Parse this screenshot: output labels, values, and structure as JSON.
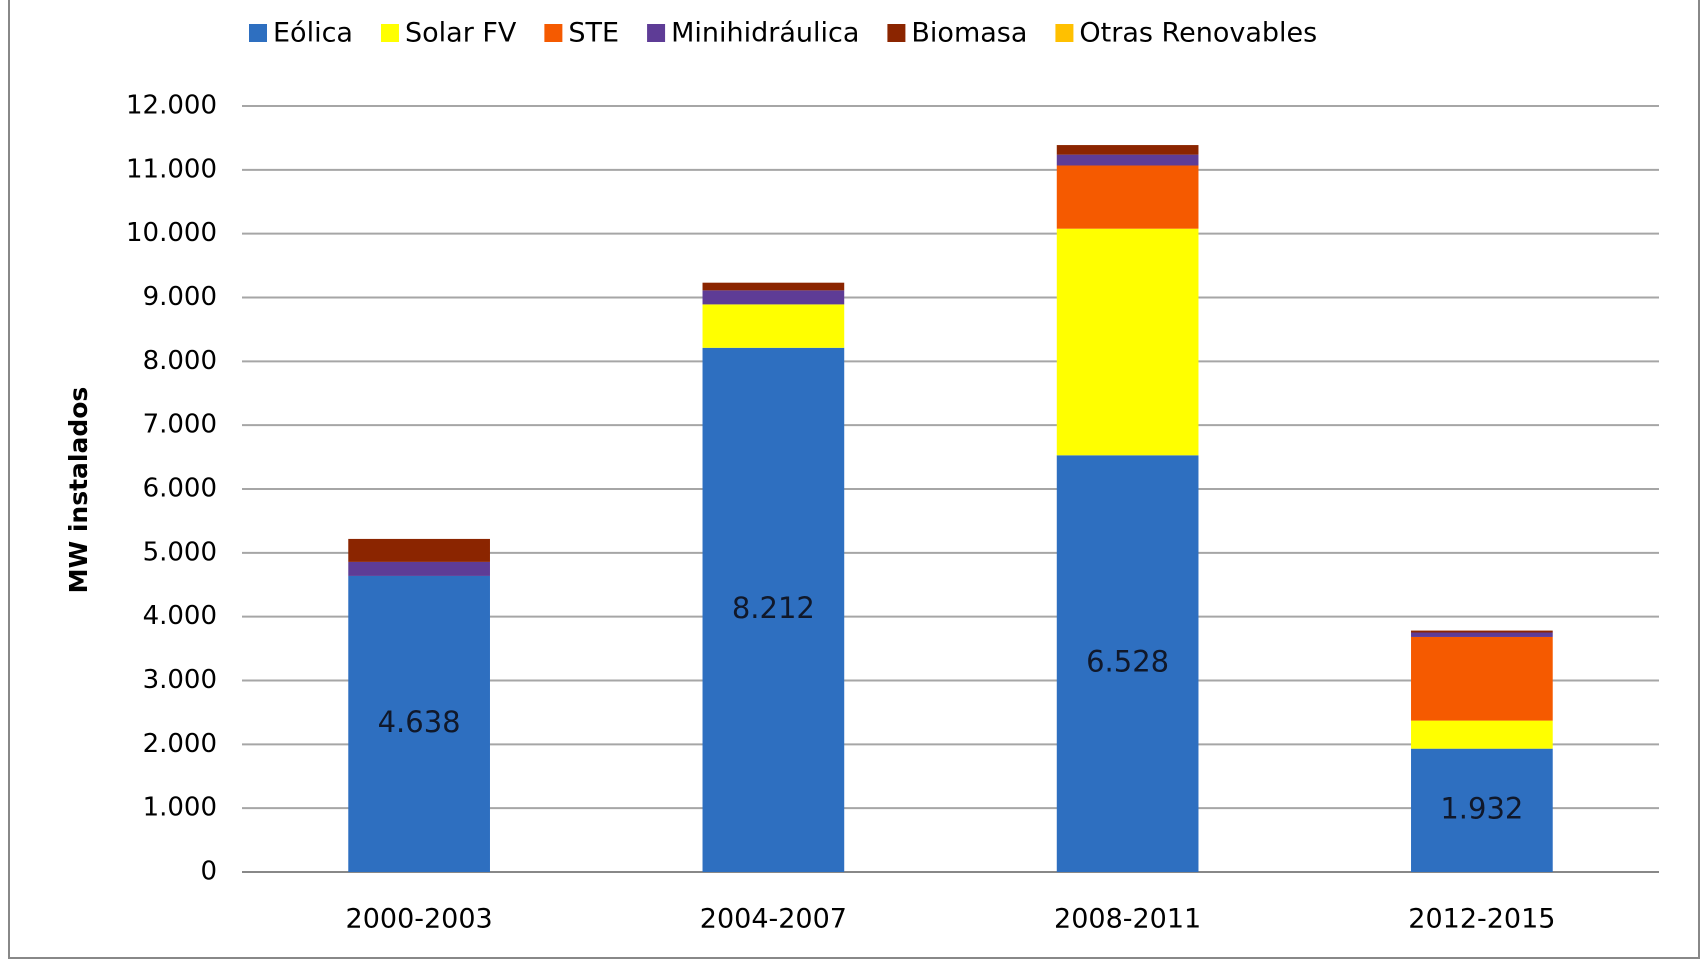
{
  "chart_data": {
    "type": "stacked_bar",
    "y_axis_label": "MW instalados",
    "categories": [
      "2000-2003",
      "2004-2007",
      "2008-2011",
      "2012-2015"
    ],
    "series": [
      {
        "name": "Eólica",
        "color": "#2e6fc0",
        "values": [
          4638,
          8212,
          6528,
          1932
        ],
        "value_labels": [
          "4.638",
          "8.212",
          "6.528",
          "1.932"
        ]
      },
      {
        "name": "Solar FV",
        "color": "#ffff00",
        "values": [
          0,
          680,
          3550,
          440
        ]
      },
      {
        "name": "STE",
        "color": "#f55a00",
        "values": [
          0,
          0,
          990,
          1310
        ]
      },
      {
        "name": "Minihidráulica",
        "color": "#5e3c96",
        "values": [
          220,
          220,
          170,
          70
        ]
      },
      {
        "name": "Biomasa",
        "color": "#8b2500",
        "values": [
          360,
          120,
          150,
          30
        ]
      },
      {
        "name": "Otras Renovables",
        "color": "#ffc000",
        "values": [
          0,
          0,
          0,
          0
        ]
      }
    ],
    "ylim": [
      0,
      12000
    ],
    "yticks": [
      0,
      {
        "value": 1000,
        "label": "1.000"
      },
      {
        "value": 2000,
        "label": "2.000"
      },
      {
        "value": 3000,
        "label": "3.000"
      },
      {
        "value": 4000,
        "label": "4.000"
      },
      {
        "value": 5000,
        "label": "5.000"
      },
      {
        "value": 6000,
        "label": "6.000"
      },
      {
        "value": 7000,
        "label": "7.000"
      },
      {
        "value": 8000,
        "label": "8.000"
      },
      {
        "value": 9000,
        "label": "9.000"
      },
      {
        "value": 10000,
        "label": "10.000"
      },
      {
        "value": 11000,
        "label": "11.000"
      },
      {
        "value": 12000,
        "label": "12.000"
      }
    ],
    "grid": true,
    "legend": "top"
  }
}
